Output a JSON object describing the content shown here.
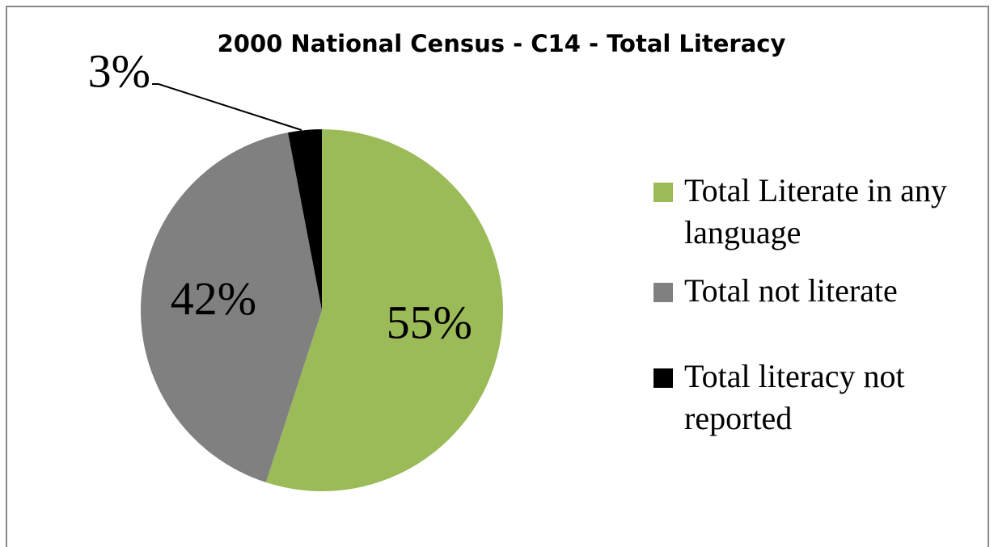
{
  "chart_data": {
    "type": "pie",
    "title": "2000 National Census - C14 - Total Literacy",
    "categories": [
      "Total Literate in any language",
      "Total not literate",
      "Total literacy not reported"
    ],
    "values": [
      55,
      42,
      3
    ],
    "value_labels": [
      "55%",
      "42%",
      "3%"
    ],
    "colors": [
      "#9bbb59",
      "#808080",
      "#000000"
    ],
    "legend": "right"
  }
}
